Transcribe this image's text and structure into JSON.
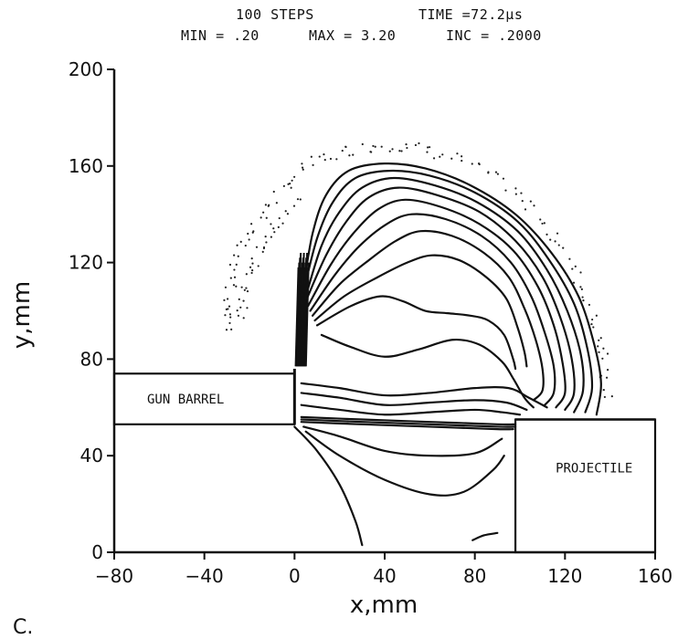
{
  "header": {
    "steps": "100 STEPS",
    "time": "TIME =72.2μs",
    "min": "MIN = .20",
    "max": "MAX = 3.20",
    "inc": "INC = .2000"
  },
  "panel_label": "C.",
  "chart_data": {
    "type": "contour",
    "xlabel": "x,mm",
    "ylabel": "y,mm",
    "xlim": [
      -80,
      160
    ],
    "ylim": [
      0,
      200
    ],
    "xticks": [
      -80,
      -40,
      0,
      40,
      80,
      120,
      160
    ],
    "yticks": [
      0,
      40,
      80,
      120,
      160,
      200
    ],
    "contour_min": 0.2,
    "contour_max": 3.2,
    "contour_increment": 0.2,
    "regions": [
      {
        "name": "GUN BARREL",
        "x": [
          -80,
          0
        ],
        "y": [
          53,
          74
        ]
      },
      {
        "name": "PROJECTILE",
        "x": [
          98,
          160
        ],
        "y": [
          0,
          55
        ]
      }
    ],
    "contours": [
      {
        "points": [
          [
            4,
            110
          ],
          [
            8,
            132
          ],
          [
            14,
            148
          ],
          [
            24,
            158
          ],
          [
            40,
            161
          ],
          [
            58,
            159
          ],
          [
            78,
            152
          ],
          [
            98,
            140
          ],
          [
            114,
            124
          ],
          [
            126,
            106
          ],
          [
            133,
            86
          ],
          [
            136,
            70
          ],
          [
            134,
            57
          ]
        ]
      },
      {
        "points": [
          [
            4,
            108
          ],
          [
            10,
            130
          ],
          [
            17,
            145
          ],
          [
            27,
            155
          ],
          [
            42,
            158
          ],
          [
            60,
            156
          ],
          [
            80,
            149
          ],
          [
            99,
            137
          ],
          [
            113,
            121
          ],
          [
            124,
            103
          ],
          [
            130,
            84
          ],
          [
            132,
            68
          ],
          [
            129,
            58
          ]
        ]
      },
      {
        "points": [
          [
            5,
            106
          ],
          [
            12,
            127
          ],
          [
            20,
            141
          ],
          [
            30,
            151
          ],
          [
            44,
            155
          ],
          [
            62,
            152
          ],
          [
            81,
            145
          ],
          [
            99,
            133
          ],
          [
            112,
            117
          ],
          [
            121,
            100
          ],
          [
            127,
            82
          ],
          [
            128,
            67
          ],
          [
            124,
            58
          ]
        ]
      },
      {
        "points": [
          [
            5,
            104
          ],
          [
            14,
            123
          ],
          [
            23,
            137
          ],
          [
            33,
            147
          ],
          [
            46,
            151
          ],
          [
            63,
            148
          ],
          [
            82,
            141
          ],
          [
            98,
            129
          ],
          [
            110,
            114
          ],
          [
            118,
            97
          ],
          [
            123,
            80
          ],
          [
            124,
            66
          ],
          [
            120,
            59
          ]
        ]
      },
      {
        "points": [
          [
            6,
            102
          ],
          [
            16,
            119
          ],
          [
            26,
            132
          ],
          [
            37,
            142
          ],
          [
            49,
            146
          ],
          [
            65,
            143
          ],
          [
            82,
            136
          ],
          [
            97,
            125
          ],
          [
            108,
            110
          ],
          [
            115,
            94
          ],
          [
            119,
            78
          ],
          [
            120,
            66
          ],
          [
            116,
            60
          ]
        ]
      },
      {
        "points": [
          [
            7,
            100
          ],
          [
            18,
            115
          ],
          [
            29,
            127
          ],
          [
            41,
            136
          ],
          [
            52,
            140
          ],
          [
            67,
            138
          ],
          [
            83,
            131
          ],
          [
            96,
            120
          ],
          [
            105,
            106
          ],
          [
            111,
            91
          ],
          [
            115,
            77
          ],
          [
            115,
            66
          ],
          [
            111,
            61
          ]
        ]
      },
      {
        "points": [
          [
            8,
            98
          ],
          [
            20,
            111
          ],
          [
            33,
            121
          ],
          [
            45,
            129
          ],
          [
            56,
            133
          ],
          [
            70,
            131
          ],
          [
            84,
            124
          ],
          [
            95,
            114
          ],
          [
            102,
            101
          ],
          [
            107,
            88
          ],
          [
            110,
            76
          ],
          [
            110,
            67
          ],
          [
            106,
            63
          ]
        ]
      },
      {
        "points": [
          [
            9,
            96
          ],
          [
            22,
            106
          ],
          [
            37,
            114
          ],
          [
            50,
            120
          ],
          [
            61,
            123
          ],
          [
            73,
            121
          ],
          [
            85,
            114
          ],
          [
            94,
            105
          ],
          [
            99,
            93
          ],
          [
            102,
            83
          ],
          [
            103,
            77
          ]
        ]
      },
      {
        "points": [
          [
            10,
            94
          ],
          [
            25,
            102
          ],
          [
            38,
            106
          ],
          [
            48,
            104
          ],
          [
            58,
            100
          ],
          [
            68,
            99
          ],
          [
            78,
            98
          ],
          [
            86,
            96
          ],
          [
            93,
            90
          ],
          [
            97,
            80
          ],
          [
            98,
            76
          ]
        ]
      },
      {
        "points": [
          [
            12,
            90
          ],
          [
            25,
            85
          ],
          [
            40,
            81
          ],
          [
            55,
            84
          ],
          [
            70,
            88
          ],
          [
            82,
            86
          ],
          [
            92,
            79
          ],
          [
            97,
            72
          ],
          [
            102,
            64
          ],
          [
            106,
            60
          ]
        ]
      },
      {
        "points": [
          [
            3,
            70
          ],
          [
            20,
            68
          ],
          [
            40,
            65
          ],
          [
            60,
            66
          ],
          [
            80,
            68
          ],
          [
            95,
            68
          ],
          [
            104,
            64
          ],
          [
            112,
            60
          ]
        ]
      },
      {
        "points": [
          [
            3,
            66
          ],
          [
            20,
            64
          ],
          [
            40,
            61
          ],
          [
            60,
            62
          ],
          [
            80,
            63
          ],
          [
            94,
            62
          ],
          [
            103,
            59
          ]
        ]
      },
      {
        "points": [
          [
            3,
            61
          ],
          [
            20,
            59
          ],
          [
            40,
            57
          ],
          [
            60,
            58
          ],
          [
            80,
            59
          ],
          [
            92,
            58
          ],
          [
            100,
            57
          ]
        ]
      },
      {
        "points": [
          [
            3,
            56
          ],
          [
            30,
            55
          ],
          [
            60,
            54
          ],
          [
            90,
            53
          ],
          [
            98,
            53
          ]
        ]
      },
      {
        "points": [
          [
            3,
            55
          ],
          [
            30,
            54
          ],
          [
            60,
            53
          ],
          [
            90,
            52
          ],
          [
            98,
            52
          ]
        ]
      },
      {
        "points": [
          [
            3,
            54
          ],
          [
            30,
            53
          ],
          [
            60,
            52
          ],
          [
            90,
            51
          ],
          [
            97,
            51
          ]
        ]
      },
      {
        "points": [
          [
            4,
            52
          ],
          [
            20,
            48
          ],
          [
            40,
            42
          ],
          [
            60,
            40
          ],
          [
            80,
            41
          ],
          [
            92,
            47
          ]
        ]
      },
      {
        "points": [
          [
            5,
            50
          ],
          [
            20,
            40
          ],
          [
            40,
            30
          ],
          [
            60,
            24
          ],
          [
            75,
            25
          ],
          [
            88,
            34
          ],
          [
            93,
            40
          ]
        ]
      },
      {
        "points": [
          [
            0,
            52
          ],
          [
            10,
            42
          ],
          [
            20,
            28
          ],
          [
            27,
            13
          ],
          [
            30,
            3
          ]
        ]
      },
      {
        "points": [
          [
            79,
            5
          ],
          [
            84,
            7
          ],
          [
            90,
            8
          ]
        ]
      }
    ]
  }
}
